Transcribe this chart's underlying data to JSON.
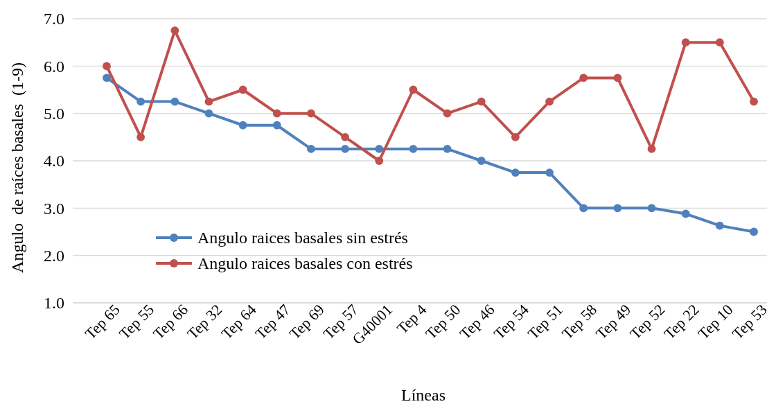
{
  "chart_data": {
    "type": "line",
    "xlabel": "Líneas",
    "ylabel": "Angulo  de raíces basales  (1-9)",
    "categories": [
      "Tep 65",
      "Tep 55",
      "Tep 66",
      "Tep 32",
      "Tep 64",
      "Tep 47",
      "Tep 69",
      "Tep 57",
      "G40001",
      "Tep 4",
      "Tep 50",
      "Tep 46",
      "Tep 54",
      "Tep 51",
      "Tep 58",
      "Tep 49",
      "Tep 52",
      "Tep 22",
      "Tep 10",
      "Tep 53"
    ],
    "series": [
      {
        "name": "Angulo raices basales sin estrés",
        "color": "#4f81bd",
        "values": [
          5.75,
          5.25,
          5.25,
          5.0,
          4.75,
          4.75,
          4.25,
          4.25,
          4.25,
          4.25,
          4.25,
          4.0,
          3.75,
          3.75,
          3.0,
          3.0,
          3.0,
          2.88,
          2.63,
          2.5
        ]
      },
      {
        "name": "Angulo raices basales con estrés",
        "color": "#c0504d",
        "values": [
          6.0,
          4.5,
          6.75,
          5.25,
          5.5,
          5.0,
          5.0,
          4.5,
          4.0,
          5.5,
          5.0,
          5.25,
          4.5,
          5.25,
          5.75,
          5.75,
          4.25,
          6.5,
          6.5,
          5.25
        ]
      }
    ],
    "ylim": [
      1,
      7
    ],
    "yticks": [
      {
        "value": 1,
        "label": "1.0"
      },
      {
        "value": 2,
        "label": "2.0"
      },
      {
        "value": 3,
        "label": "3.0"
      },
      {
        "value": 4,
        "label": "4.0"
      },
      {
        "value": 5,
        "label": "5.0"
      },
      {
        "value": 6,
        "label": "6.0"
      },
      {
        "value": 7,
        "label": "7.0"
      }
    ],
    "grid": "y",
    "legend": "bottom left",
    "marker": "circle",
    "line_style": "solid"
  }
}
